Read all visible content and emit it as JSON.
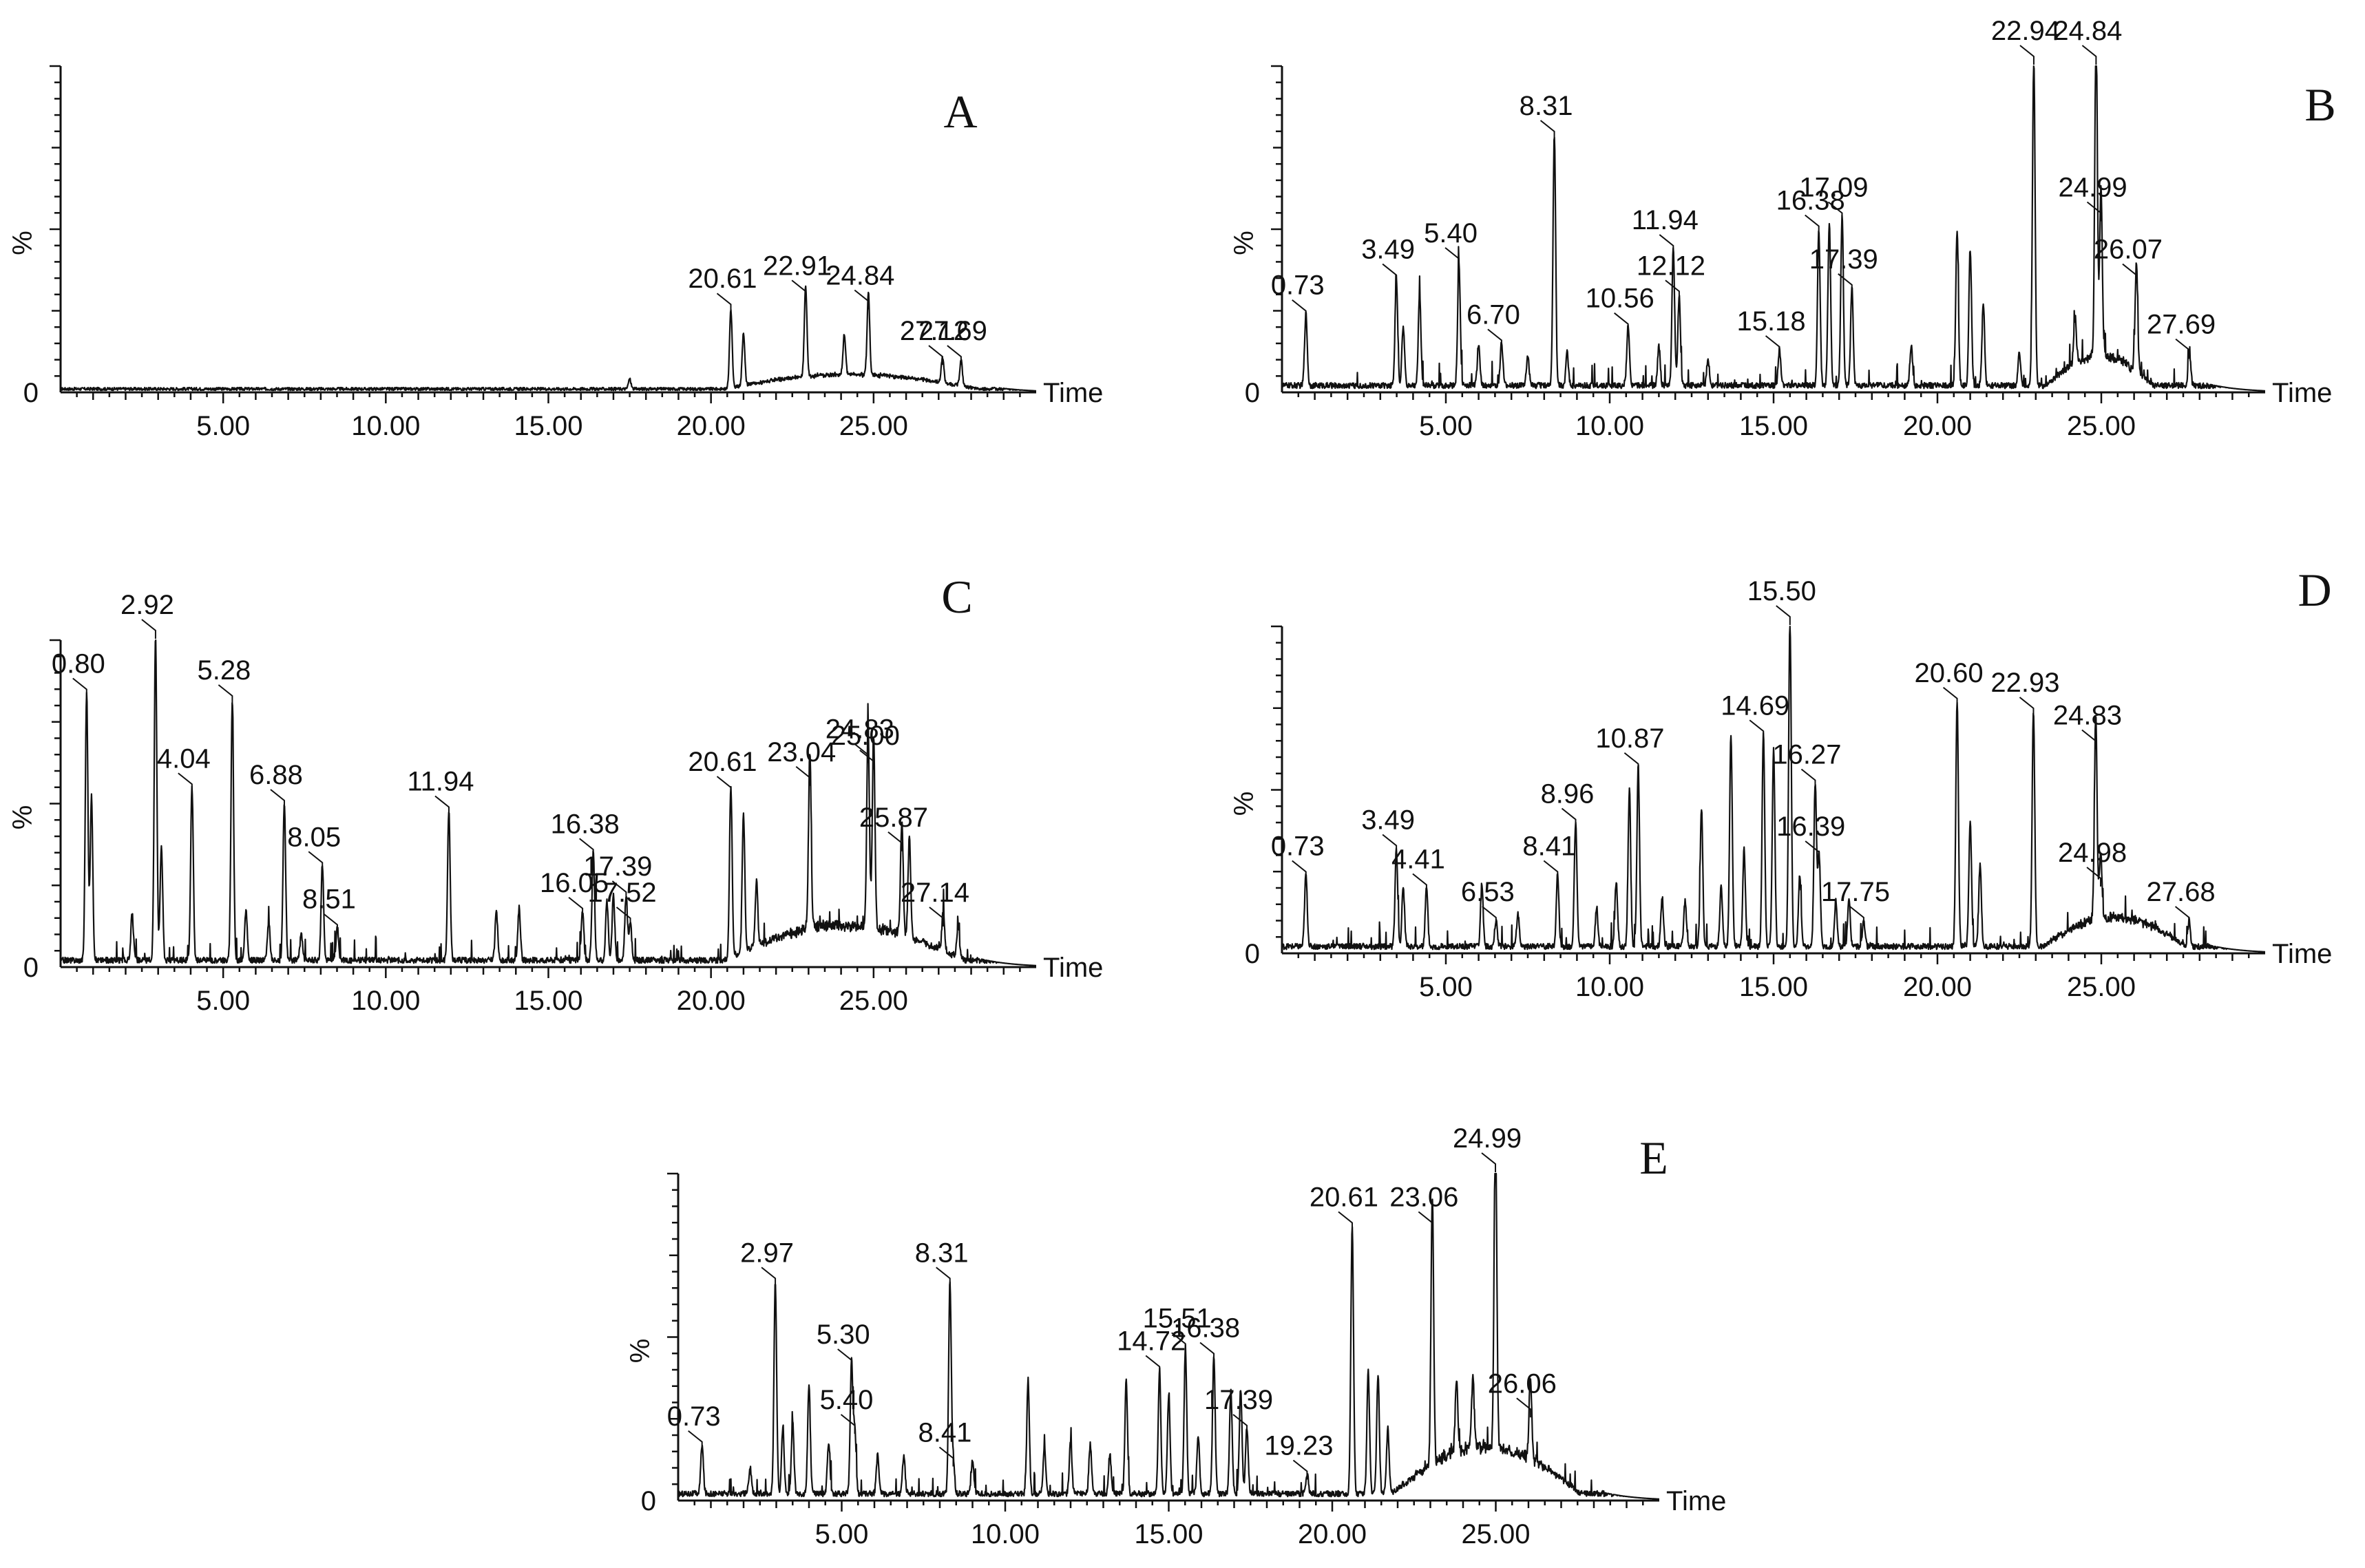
{
  "figure": {
    "ylabel_text": "%",
    "xlabel_text": "Time",
    "zero_label": "0",
    "trace_color": "#111111"
  },
  "chart_data": [
    {
      "type": "line",
      "panel": "A",
      "xlim": [
        0,
        30
      ],
      "ylim": [
        0,
        100
      ],
      "xticks": [
        "5.00",
        "10.00",
        "15.00",
        "20.00",
        "25.00"
      ],
      "xlabel": "Time",
      "ylabel": "%",
      "baseline": 1,
      "peaks": [
        {
          "t": 17.5,
          "h": 3
        },
        {
          "t": 20.61,
          "h": 24,
          "label": "20.61"
        },
        {
          "t": 21.0,
          "h": 16
        },
        {
          "t": 22.91,
          "h": 28,
          "label": "22.91"
        },
        {
          "t": 24.1,
          "h": 12
        },
        {
          "t": 24.84,
          "h": 25,
          "label": "24.84"
        },
        {
          "t": 27.12,
          "h": 8,
          "label": "27.12"
        },
        {
          "t": 27.69,
          "h": 8,
          "label": "27.69"
        }
      ],
      "humps": [
        {
          "from": 20.4,
          "to": 28.2,
          "h": 5
        }
      ]
    },
    {
      "type": "line",
      "panel": "B",
      "xlim": [
        0,
        30
      ],
      "ylim": [
        0,
        100
      ],
      "xticks": [
        "5.00",
        "10.00",
        "15.00",
        "20.00",
        "25.00"
      ],
      "xlabel": "Time",
      "ylabel": "%",
      "baseline": 2,
      "peaks": [
        {
          "t": 0.73,
          "h": 22,
          "label": "0.73"
        },
        {
          "t": 3.49,
          "h": 33,
          "label": "3.49"
        },
        {
          "t": 3.7,
          "h": 18
        },
        {
          "t": 4.2,
          "h": 28
        },
        {
          "t": 5.4,
          "h": 38,
          "label": "5.40"
        },
        {
          "t": 6.0,
          "h": 12
        },
        {
          "t": 6.7,
          "h": 13,
          "label": "6.70"
        },
        {
          "t": 7.5,
          "h": 9
        },
        {
          "t": 8.31,
          "h": 77,
          "label": "8.31"
        },
        {
          "t": 8.7,
          "h": 10
        },
        {
          "t": 10.56,
          "h": 18,
          "label": "10.56"
        },
        {
          "t": 11.5,
          "h": 12
        },
        {
          "t": 11.94,
          "h": 42,
          "label": "11.94"
        },
        {
          "t": 12.12,
          "h": 28,
          "label": "12.12"
        },
        {
          "t": 13.0,
          "h": 8
        },
        {
          "t": 15.18,
          "h": 11,
          "label": "15.18"
        },
        {
          "t": 16.38,
          "h": 48,
          "label": "16.38"
        },
        {
          "t": 16.7,
          "h": 50
        },
        {
          "t": 17.09,
          "h": 52,
          "label": "17.09"
        },
        {
          "t": 17.39,
          "h": 30,
          "label": "17.39"
        },
        {
          "t": 19.2,
          "h": 12
        },
        {
          "t": 20.6,
          "h": 48
        },
        {
          "t": 21.0,
          "h": 42
        },
        {
          "t": 21.4,
          "h": 25
        },
        {
          "t": 22.5,
          "h": 10
        },
        {
          "t": 22.94,
          "h": 100,
          "label": "22.94"
        },
        {
          "t": 24.2,
          "h": 14
        },
        {
          "t": 24.84,
          "h": 100,
          "label": "24.84"
        },
        {
          "t": 24.99,
          "h": 52,
          "label": "24.99"
        },
        {
          "t": 26.07,
          "h": 33,
          "label": "26.07"
        },
        {
          "t": 27.69,
          "h": 10,
          "label": "27.69"
        }
      ],
      "humps": [
        {
          "from": 23.3,
          "to": 26.6,
          "h": 10
        }
      ]
    },
    {
      "type": "line",
      "panel": "C",
      "xlim": [
        0,
        30
      ],
      "ylim": [
        0,
        100
      ],
      "xticks": [
        "5.00",
        "10.00",
        "15.00",
        "20.00",
        "25.00"
      ],
      "xlabel": "Time",
      "ylabel": "%",
      "baseline": 2,
      "peaks": [
        {
          "t": 0.8,
          "h": 82,
          "label": "0.80"
        },
        {
          "t": 0.95,
          "h": 50
        },
        {
          "t": 2.2,
          "h": 14
        },
        {
          "t": 2.92,
          "h": 100,
          "label": "2.92"
        },
        {
          "t": 3.1,
          "h": 35
        },
        {
          "t": 4.04,
          "h": 53,
          "label": "4.04"
        },
        {
          "t": 5.28,
          "h": 80,
          "label": "5.28"
        },
        {
          "t": 5.7,
          "h": 15
        },
        {
          "t": 6.4,
          "h": 12
        },
        {
          "t": 6.88,
          "h": 48,
          "label": "6.88"
        },
        {
          "t": 7.4,
          "h": 8
        },
        {
          "t": 8.05,
          "h": 29,
          "label": "8.05"
        },
        {
          "t": 8.51,
          "h": 10,
          "label": "8.51"
        },
        {
          "t": 11.94,
          "h": 46,
          "label": "11.94"
        },
        {
          "t": 13.4,
          "h": 15
        },
        {
          "t": 14.1,
          "h": 16
        },
        {
          "t": 16.05,
          "h": 15,
          "label": "16.05"
        },
        {
          "t": 16.38,
          "h": 33,
          "label": "16.38"
        },
        {
          "t": 16.8,
          "h": 18
        },
        {
          "t": 17.0,
          "h": 20
        },
        {
          "t": 17.39,
          "h": 20,
          "label": "17.39"
        },
        {
          "t": 17.52,
          "h": 12,
          "label": "17.52"
        },
        {
          "t": 20.61,
          "h": 52,
          "label": "20.61"
        },
        {
          "t": 21.0,
          "h": 42
        },
        {
          "t": 21.4,
          "h": 20
        },
        {
          "t": 23.04,
          "h": 55,
          "label": "23.04"
        },
        {
          "t": 24.83,
          "h": 62,
          "label": "24.83"
        },
        {
          "t": 25.0,
          "h": 60,
          "label": "25.00"
        },
        {
          "t": 25.87,
          "h": 35,
          "label": "25.87"
        },
        {
          "t": 26.1,
          "h": 30
        },
        {
          "t": 27.14,
          "h": 12,
          "label": "27.14"
        },
        {
          "t": 27.6,
          "h": 10
        }
      ],
      "humps": [
        {
          "from": 20.4,
          "to": 27.8,
          "h": 12
        }
      ]
    },
    {
      "type": "line",
      "panel": "D",
      "xlim": [
        0,
        30
      ],
      "ylim": [
        0,
        100
      ],
      "xticks": [
        "5.00",
        "10.00",
        "15.00",
        "20.00",
        "25.00"
      ],
      "xlabel": "Time",
      "ylabel": "%",
      "baseline": 2,
      "peaks": [
        {
          "t": 0.73,
          "h": 22,
          "label": "0.73"
        },
        {
          "t": 3.49,
          "h": 30,
          "label": "3.49"
        },
        {
          "t": 3.7,
          "h": 18
        },
        {
          "t": 4.41,
          "h": 18,
          "label": "4.41"
        },
        {
          "t": 6.1,
          "h": 18
        },
        {
          "t": 6.53,
          "h": 8,
          "label": "6.53"
        },
        {
          "t": 7.2,
          "h": 10
        },
        {
          "t": 8.41,
          "h": 22,
          "label": "8.41"
        },
        {
          "t": 8.96,
          "h": 38,
          "label": "8.96"
        },
        {
          "t": 9.6,
          "h": 12
        },
        {
          "t": 10.2,
          "h": 20
        },
        {
          "t": 10.6,
          "h": 48
        },
        {
          "t": 10.87,
          "h": 55,
          "label": "10.87"
        },
        {
          "t": 11.6,
          "h": 15
        },
        {
          "t": 12.3,
          "h": 14
        },
        {
          "t": 12.8,
          "h": 42
        },
        {
          "t": 13.4,
          "h": 18
        },
        {
          "t": 13.7,
          "h": 65
        },
        {
          "t": 14.1,
          "h": 30
        },
        {
          "t": 14.69,
          "h": 65,
          "label": "14.69"
        },
        {
          "t": 15.0,
          "h": 60
        },
        {
          "t": 15.5,
          "h": 100,
          "label": "15.50"
        },
        {
          "t": 15.8,
          "h": 22
        },
        {
          "t": 16.27,
          "h": 50,
          "label": "16.27"
        },
        {
          "t": 16.39,
          "h": 28,
          "label": "16.39"
        },
        {
          "t": 16.9,
          "h": 14
        },
        {
          "t": 17.3,
          "h": 14
        },
        {
          "t": 17.75,
          "h": 8,
          "label": "17.75"
        },
        {
          "t": 20.6,
          "h": 75,
          "label": "20.60"
        },
        {
          "t": 21.0,
          "h": 38
        },
        {
          "t": 21.3,
          "h": 25
        },
        {
          "t": 22.93,
          "h": 72,
          "label": "22.93"
        },
        {
          "t": 24.83,
          "h": 62,
          "label": "24.83"
        },
        {
          "t": 24.98,
          "h": 20,
          "label": "24.98"
        },
        {
          "t": 27.68,
          "h": 8,
          "label": "27.68"
        }
      ],
      "humps": [
        {
          "from": 23.2,
          "to": 27.6,
          "h": 10
        }
      ]
    },
    {
      "type": "line",
      "panel": "E",
      "xlim": [
        0,
        30
      ],
      "ylim": [
        0,
        100
      ],
      "xticks": [
        "5.00",
        "10.00",
        "15.00",
        "20.00",
        "25.00"
      ],
      "xlabel": "Time",
      "ylabel": "%",
      "baseline": 2,
      "peaks": [
        {
          "t": 0.73,
          "h": 15,
          "label": "0.73"
        },
        {
          "t": 2.2,
          "h": 8
        },
        {
          "t": 2.97,
          "h": 65,
          "label": "2.97"
        },
        {
          "t": 3.2,
          "h": 20
        },
        {
          "t": 3.5,
          "h": 22
        },
        {
          "t": 4.0,
          "h": 33
        },
        {
          "t": 4.6,
          "h": 15
        },
        {
          "t": 5.3,
          "h": 40,
          "label": "5.30"
        },
        {
          "t": 5.4,
          "h": 20,
          "label": "5.40"
        },
        {
          "t": 6.1,
          "h": 12
        },
        {
          "t": 6.9,
          "h": 12
        },
        {
          "t": 8.31,
          "h": 65,
          "label": "8.31"
        },
        {
          "t": 8.41,
          "h": 10,
          "label": "8.41"
        },
        {
          "t": 9.0,
          "h": 10
        },
        {
          "t": 10.7,
          "h": 35
        },
        {
          "t": 11.2,
          "h": 14
        },
        {
          "t": 12.0,
          "h": 16
        },
        {
          "t": 12.6,
          "h": 15
        },
        {
          "t": 13.2,
          "h": 12
        },
        {
          "t": 13.7,
          "h": 35
        },
        {
          "t": 14.72,
          "h": 38,
          "label": "14.72"
        },
        {
          "t": 15.0,
          "h": 30
        },
        {
          "t": 15.51,
          "h": 45,
          "label": "15.51"
        },
        {
          "t": 15.9,
          "h": 18
        },
        {
          "t": 16.38,
          "h": 42,
          "label": "16.38"
        },
        {
          "t": 16.9,
          "h": 32
        },
        {
          "t": 17.2,
          "h": 32
        },
        {
          "t": 17.39,
          "h": 20,
          "label": "17.39"
        },
        {
          "t": 19.23,
          "h": 6,
          "label": "19.23"
        },
        {
          "t": 20.61,
          "h": 82,
          "label": "20.61"
        },
        {
          "t": 21.1,
          "h": 38
        },
        {
          "t": 21.4,
          "h": 36
        },
        {
          "t": 21.7,
          "h": 20
        },
        {
          "t": 23.06,
          "h": 82,
          "label": "23.06"
        },
        {
          "t": 23.8,
          "h": 22
        },
        {
          "t": 24.3,
          "h": 22
        },
        {
          "t": 24.99,
          "h": 100,
          "label": "24.99"
        },
        {
          "t": 26.06,
          "h": 25,
          "label": "26.06"
        }
      ],
      "humps": [
        {
          "from": 21.8,
          "to": 27.6,
          "h": 16
        }
      ]
    }
  ]
}
